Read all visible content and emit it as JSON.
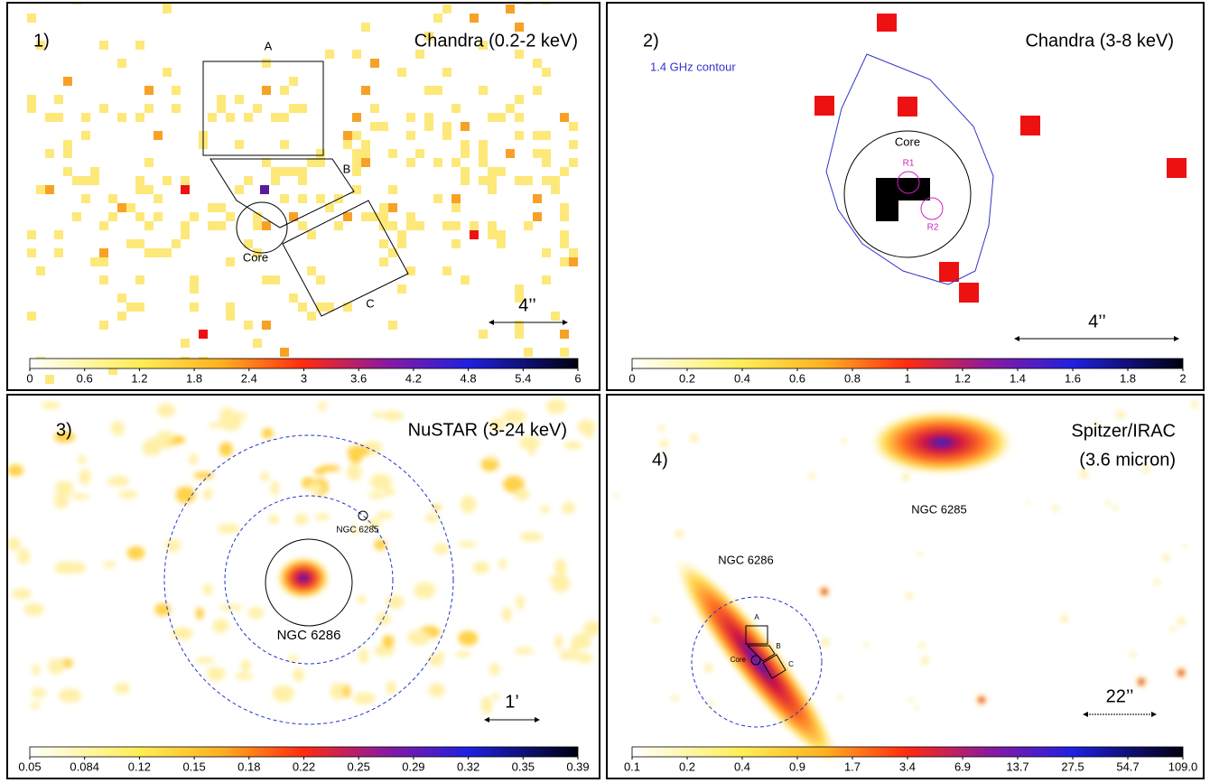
{
  "panels": [
    {
      "label": "1)",
      "title": "Chandra (0.2-2 keV)",
      "annotations": {
        "a": "A",
        "b": "B",
        "c": "C",
        "core": "Core",
        "scale": "4’’"
      },
      "colorbar_ticks": [
        "0",
        "0.6",
        "1.2",
        "1.8",
        "2.4",
        "3",
        "3.6",
        "4.2",
        "4.8",
        "5.4",
        "6"
      ]
    },
    {
      "label": "2)",
      "title": "Chandra (3-8 keV)",
      "annotations": {
        "contour": "1.4 GHz contour",
        "core": "Core",
        "r1": "R1",
        "r2": "R2",
        "scale": "4’’"
      },
      "colorbar_ticks": [
        "0",
        "0.2",
        "0.4",
        "0.6",
        "0.8",
        "1",
        "1.2",
        "1.4",
        "1.6",
        "1.8",
        "2"
      ]
    },
    {
      "label": "3)",
      "title": "NuSTAR (3-24 keV)",
      "annotations": {
        "ngc6285": "NGC 6285",
        "ngc6286": "NGC 6286",
        "scale": "1’"
      },
      "colorbar_ticks": [
        "0.05",
        "0.084",
        "0.12",
        "0.15",
        "0.18",
        "0.22",
        "0.25",
        "0.29",
        "0.32",
        "0.35",
        "0.39"
      ]
    },
    {
      "label": "4)",
      "title": [
        "Spitzer/IRAC",
        "(3.6 micron)"
      ],
      "annotations": {
        "ngc6285": "NGC 6285",
        "ngc6286": "NGC 6286",
        "a": "A",
        "b": "B",
        "c": "C",
        "core": "Core",
        "scale": "22’’"
      },
      "colorbar_ticks": [
        "0.1",
        "0.2",
        "0.4",
        "0.9",
        "1.7",
        "3.4",
        "6.9",
        "13.7",
        "27.5",
        "54.7",
        "109.0"
      ]
    }
  ]
}
